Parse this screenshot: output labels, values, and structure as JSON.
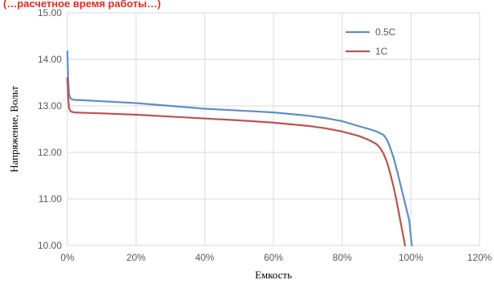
{
  "chart_data": {
    "type": "line",
    "title": "",
    "title_fragment": "(…расчетное время работы…)",
    "xlabel": "Емкость",
    "ylabel": "Напряжение, Вольт",
    "xlim": [
      0,
      120
    ],
    "ylim": [
      10.0,
      15.0
    ],
    "x_ticks": [
      "0%",
      "20%",
      "40%",
      "60%",
      "80%",
      "100%",
      "120%"
    ],
    "x_tick_values": [
      0,
      20,
      40,
      60,
      80,
      100,
      120
    ],
    "y_ticks": [
      "10.00",
      "11.00",
      "12.00",
      "13.00",
      "14.00",
      "15.00"
    ],
    "y_tick_values": [
      10,
      11,
      12,
      13,
      14,
      15
    ],
    "grid": true,
    "legend_position": "top-right",
    "series": [
      {
        "name": "0.5C",
        "color": "#5b8ec9",
        "x": [
          0,
          0.2,
          0.5,
          1,
          2,
          5,
          10,
          20,
          30,
          40,
          50,
          60,
          70,
          75,
          80,
          85,
          88,
          90,
          92,
          93,
          94,
          95,
          96,
          97,
          98,
          99,
          99.5,
          100,
          100.3
        ],
        "y": [
          14.17,
          13.6,
          13.25,
          13.15,
          13.13,
          13.12,
          13.1,
          13.06,
          13.0,
          12.94,
          12.9,
          12.86,
          12.79,
          12.74,
          12.67,
          12.56,
          12.5,
          12.45,
          12.38,
          12.28,
          12.1,
          11.88,
          11.6,
          11.3,
          11.0,
          10.7,
          10.55,
          10.2,
          10.0
        ]
      },
      {
        "name": "1C",
        "color": "#c0504d",
        "x": [
          0,
          0.2,
          0.5,
          1,
          2,
          5,
          10,
          20,
          30,
          40,
          50,
          60,
          70,
          75,
          80,
          85,
          88,
          90,
          91,
          92,
          93,
          94,
          95,
          96,
          97,
          97.8,
          98.3
        ],
        "y": [
          13.6,
          13.2,
          12.95,
          12.88,
          12.86,
          12.85,
          12.84,
          12.81,
          12.77,
          12.73,
          12.69,
          12.64,
          12.57,
          12.52,
          12.45,
          12.35,
          12.26,
          12.18,
          12.1,
          11.98,
          11.8,
          11.55,
          11.25,
          10.9,
          10.5,
          10.2,
          10.0
        ]
      }
    ]
  }
}
